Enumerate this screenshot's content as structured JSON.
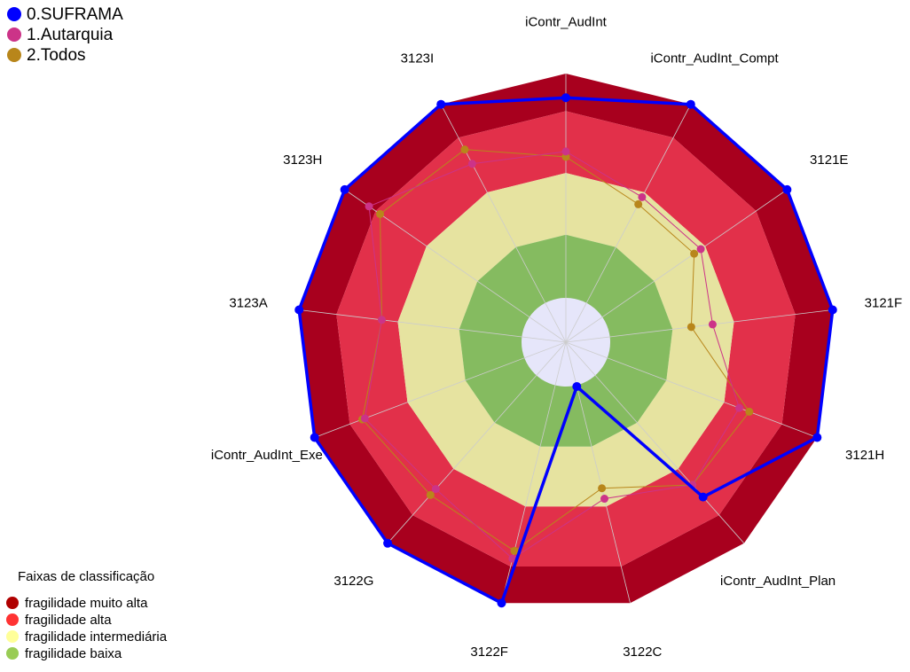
{
  "chart_data": {
    "type": "radar",
    "categories": [
      "iContr_AudInt",
      "iContr_AudInt_Compt",
      "3121E",
      "3121F",
      "3121H",
      "iContr_AudInt_Plan",
      "3122C",
      "3122F",
      "3122G",
      "iContr_AudInt_Exe",
      "3123A",
      "3123H",
      "3123I"
    ],
    "rlim": [
      0,
      100
    ],
    "series": [
      {
        "name": "0.SUFRAMA",
        "color": "#0000ff",
        "values": [
          91,
          100,
          100,
          100,
          100,
          77,
          17,
          100,
          100,
          100,
          100,
          100,
          100
        ]
      },
      {
        "name": "1.Autarquia",
        "color": "#cc3388",
        "values": [
          71,
          61,
          61,
          55,
          69,
          71,
          60,
          83,
          73,
          80,
          69,
          89,
          75
        ]
      },
      {
        "name": "2.Todos",
        "color": "#b8861b",
        "values": [
          69,
          58,
          58,
          47,
          73,
          71,
          56,
          80,
          76,
          81,
          69,
          84,
          81
        ]
      }
    ],
    "legend_title": "Faixas de classificação",
    "bands": [
      {
        "name": "fragilidade muito alta",
        "color": "#b00000",
        "fill": "#a8001e",
        "from": 86,
        "to": 100
      },
      {
        "name": "fragilidade alta",
        "color": "#ff3333",
        "fill": "#e2304a",
        "from": 63,
        "to": 86
      },
      {
        "name": "fragilidade intermediária",
        "color": "#ffff99",
        "fill": "#e6e3a0",
        "from": 40,
        "to": 63
      },
      {
        "name": "fragilidade baixa",
        "color": "#99cc55",
        "fill": "#85bb60",
        "from": 15,
        "to": 40
      }
    ]
  }
}
